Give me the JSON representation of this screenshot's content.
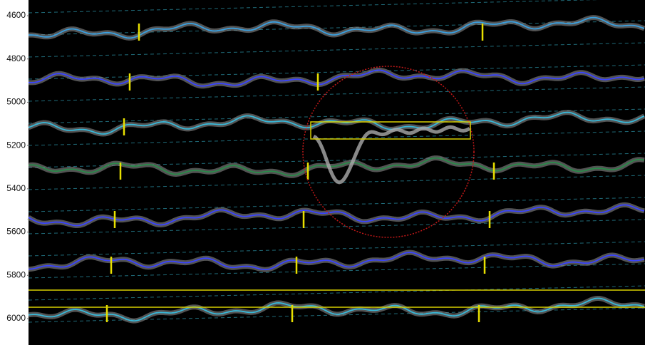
{
  "y_axis": {
    "ticks": [
      4600,
      4800,
      5000,
      5200,
      5400,
      5600,
      5800,
      6000
    ]
  }
}
